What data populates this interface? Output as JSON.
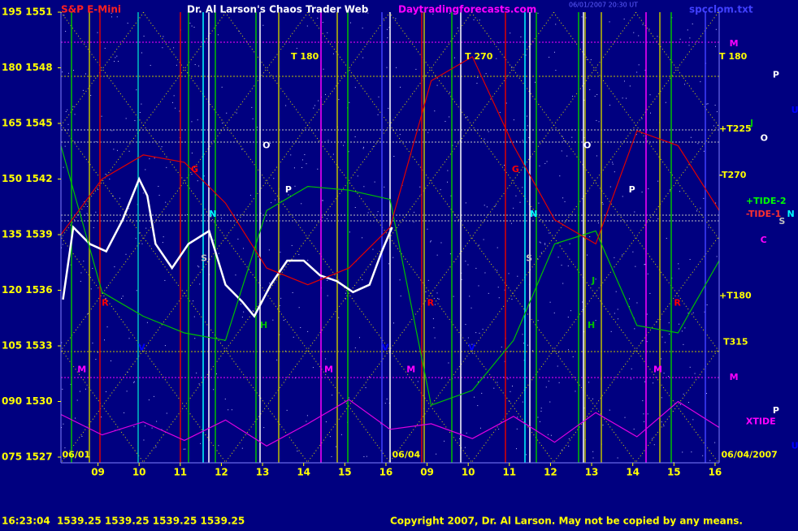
{
  "chart_data": {
    "type": "line",
    "title": "Dr. Al Larson's Chaos Trader Web",
    "instrument": "S&P E-Mini",
    "site": "Daytradingforecasts.com",
    "timestamp": "06/01/2007 20:30 UT",
    "file": "spcclom.txt",
    "status": "16:23:04  1539.25 1539.25 1539.25 1539.25",
    "copyright": "Copyright 2007, Dr. Al Larson. May not be copied by any means.",
    "xlim": [
      8.1,
      24.1
    ],
    "ylim": [
      1527,
      1551
    ],
    "xticks": [
      {
        "value": 9,
        "label": "09"
      },
      10,
      11,
      12,
      13,
      14,
      15,
      16,
      {
        "value": 17,
        "label": "09"
      },
      {
        "value": 18,
        "label": "10"
      },
      {
        "value": 19,
        "label": "11"
      },
      {
        "value": 20,
        "label": "12"
      },
      {
        "value": 21,
        "label": "13"
      },
      {
        "value": 22,
        "label": "14"
      },
      {
        "value": 23,
        "label": "15"
      },
      {
        "value": 24,
        "label": "16"
      }
    ],
    "yticks": [
      {
        "value": 1551,
        "label": "195 1551"
      },
      {
        "value": 1548,
        "label": "180 1548"
      },
      {
        "value": 1545,
        "label": "165 1545"
      },
      {
        "value": 1542,
        "label": "150 1542"
      },
      {
        "value": 1539,
        "label": "135 1539"
      },
      {
        "value": 1536,
        "label": "120 1536"
      },
      {
        "value": 1533,
        "label": "105 1533"
      },
      {
        "value": 1530,
        "label": "090 1530"
      },
      {
        "value": 1527,
        "label": "075 1527"
      }
    ],
    "series": [
      {
        "color": "#ffffff",
        "x": [
          8.15,
          8.4,
          8.8,
          9.2,
          9.6,
          10.0,
          10.2,
          10.4,
          10.8,
          11.2,
          11.7,
          12.1,
          12.5,
          12.8,
          13.2,
          13.6,
          14.0,
          14.4,
          14.8,
          15.2,
          15.6,
          15.9,
          16.15
        ],
        "values": [
          1535.5,
          1539.4,
          1538.5,
          1538.1,
          1539.8,
          1542.0,
          1541.1,
          1538.5,
          1537.2,
          1538.5,
          1539.2,
          1536.3,
          1535.4,
          1534.6,
          1536.3,
          1537.6,
          1537.6,
          1536.8,
          1536.5,
          1535.9,
          1536.3,
          1538.1,
          1539.4
        ]
      },
      {
        "color": "#00c000",
        "x": [
          8.1,
          9.1,
          10.1,
          11.1,
          12.1,
          13.1,
          14.1,
          15.1,
          16.1,
          17.1,
          18.1,
          19.1,
          20.1,
          21.1,
          22.1,
          23.1,
          24.1
        ],
        "values": [
          1543.8,
          1535.9,
          1534.6,
          1533.7,
          1533.3,
          1540.3,
          1541.6,
          1541.4,
          1540.9,
          1529.8,
          1530.6,
          1533.3,
          1538.5,
          1539.2,
          1534.1,
          1533.7,
          1537.6
        ]
      },
      {
        "color": "#e00000",
        "x": [
          8.1,
          9.1,
          10.1,
          11.1,
          12.1,
          13.1,
          14.1,
          15.1,
          16.1,
          17.1,
          18.1,
          19.1,
          20.1,
          21.1,
          22.1,
          23.1,
          24.1
        ],
        "values": [
          1539.0,
          1542.0,
          1543.3,
          1542.9,
          1540.7,
          1537.2,
          1536.3,
          1537.2,
          1539.4,
          1547.3,
          1548.6,
          1543.8,
          1539.8,
          1538.5,
          1544.6,
          1543.8,
          1540.3
        ]
      },
      {
        "color": "#e000e0",
        "x": [
          8.1,
          9.1,
          10.1,
          11.1,
          12.1,
          13.1,
          14.1,
          15.1,
          16.1,
          17.1,
          18.1,
          19.1,
          20.1,
          21.1,
          22.1,
          23.1,
          24.1
        ],
        "values": [
          1529.3,
          1528.2,
          1528.9,
          1527.9,
          1529.0,
          1527.6,
          1528.8,
          1530.1,
          1528.5,
          1528.8,
          1528.0,
          1529.2,
          1527.8,
          1529.4,
          1528.1,
          1530.0,
          1528.6
        ]
      }
    ],
    "annotations": [
      {
        "text": "T 180",
        "x": 13.69,
        "y": 1548.6,
        "color": "#ffff00"
      },
      {
        "text": "T 270",
        "x": 17.92,
        "y": 1548.6,
        "color": "#ffff00"
      },
      {
        "text": "T 180",
        "x": 24.1,
        "y": 1548.6,
        "color": "#ffff00"
      },
      {
        "text": "M",
        "x": 24.35,
        "y": 1549.3,
        "color": "#ff00ff"
      },
      {
        "text": "+T225",
        "x": 24.1,
        "y": 1544.7,
        "color": "#ffff00"
      },
      {
        "text": "-T270",
        "x": 24.1,
        "y": 1542.2,
        "color": "#ffff00"
      },
      {
        "text": "+TIDE-2",
        "x": 24.75,
        "y": 1540.8,
        "color": "#00ff00"
      },
      {
        "text": "-TIDE-1",
        "x": 24.75,
        "y": 1540.1,
        "color": "#ff3030"
      },
      {
        "text": "+T180",
        "x": 24.1,
        "y": 1535.7,
        "color": "#ffff00"
      },
      {
        "text": "T315",
        "x": 24.2,
        "y": 1533.2,
        "color": "#ffff00"
      },
      {
        "text": "M",
        "x": 24.35,
        "y": 1531.3,
        "color": "#ff00ff"
      },
      {
        "text": "XTIDE",
        "x": 24.75,
        "y": 1528.9,
        "color": "#ff00ff"
      },
      {
        "text": "06/04/2007",
        "x": 24.15,
        "y": 1527.1,
        "color": "#ffff00"
      },
      {
        "text": "P",
        "x": 25.4,
        "y": 1547.6,
        "color": "#ffffff"
      },
      {
        "text": "U",
        "x": 25.85,
        "y": 1545.7,
        "color": "#0000ff"
      },
      {
        "text": "J",
        "x": 24.85,
        "y": 1545.0,
        "color": "#00c000"
      },
      {
        "text": "O",
        "x": 25.1,
        "y": 1544.2,
        "color": "#ffffff"
      },
      {
        "text": "N",
        "x": 25.75,
        "y": 1540.1,
        "color": "#00ffff"
      },
      {
        "text": "S",
        "x": 25.55,
        "y": 1539.7,
        "color": "#c0c0c0"
      },
      {
        "text": "C",
        "x": 25.1,
        "y": 1538.7,
        "color": "#ff00ff"
      },
      {
        "text": "P",
        "x": 25.4,
        "y": 1529.5,
        "color": "#ffffff"
      },
      {
        "text": "U",
        "x": 25.85,
        "y": 1527.6,
        "color": "#0000ff"
      },
      {
        "text": "O",
        "x": 13.0,
        "y": 1543.8,
        "color": "#ffffff"
      },
      {
        "text": "O",
        "x": 20.8,
        "y": 1543.8,
        "color": "#ffffff"
      },
      {
        "text": "P",
        "x": 13.55,
        "y": 1541.4,
        "color": "#ffffff"
      },
      {
        "text": "P",
        "x": 21.9,
        "y": 1541.4,
        "color": "#ffffff"
      },
      {
        "text": "G",
        "x": 11.26,
        "y": 1542.5,
        "color": "#ff0000"
      },
      {
        "text": "G",
        "x": 19.06,
        "y": 1542.5,
        "color": "#ff0000"
      },
      {
        "text": "N",
        "x": 11.7,
        "y": 1540.1,
        "color": "#00ffff"
      },
      {
        "text": "N",
        "x": 19.5,
        "y": 1540.1,
        "color": "#00ffff"
      },
      {
        "text": "S",
        "x": 11.5,
        "y": 1537.7,
        "color": "#c0c0c0"
      },
      {
        "text": "S",
        "x": 19.4,
        "y": 1537.7,
        "color": "#c0c0c0"
      },
      {
        "text": "J",
        "x": 21.0,
        "y": 1536.5,
        "color": "#00c000"
      },
      {
        "text": "R",
        "x": 9.09,
        "y": 1535.3,
        "color": "#ff0000"
      },
      {
        "text": "R",
        "x": 17.0,
        "y": 1535.3,
        "color": "#ff0000"
      },
      {
        "text": "R",
        "x": 23.0,
        "y": 1535.3,
        "color": "#ff0000"
      },
      {
        "text": "H",
        "x": 12.94,
        "y": 1534.1,
        "color": "#00c000"
      },
      {
        "text": "H",
        "x": 20.9,
        "y": 1534.1,
        "color": "#00c000"
      },
      {
        "text": "V",
        "x": 9.98,
        "y": 1532.9,
        "color": "#0000ff"
      },
      {
        "text": "V",
        "x": 15.9,
        "y": 1532.9,
        "color": "#0000ff"
      },
      {
        "text": "V",
        "x": 18.0,
        "y": 1532.9,
        "color": "#0000ff"
      },
      {
        "text": "M",
        "x": 8.5,
        "y": 1531.7,
        "color": "#ff00ff"
      },
      {
        "text": "M",
        "x": 14.5,
        "y": 1531.7,
        "color": "#ff00ff"
      },
      {
        "text": "M",
        "x": 16.5,
        "y": 1531.7,
        "color": "#ff00ff"
      },
      {
        "text": "M",
        "x": 22.5,
        "y": 1531.7,
        "color": "#ff00ff"
      },
      {
        "text": "06/01",
        "x": 8.13,
        "y": 1527.1,
        "color": "#ffff00"
      },
      {
        "text": "06/04",
        "x": 16.15,
        "y": 1527.1,
        "color": "#ffff00"
      }
    ]
  }
}
